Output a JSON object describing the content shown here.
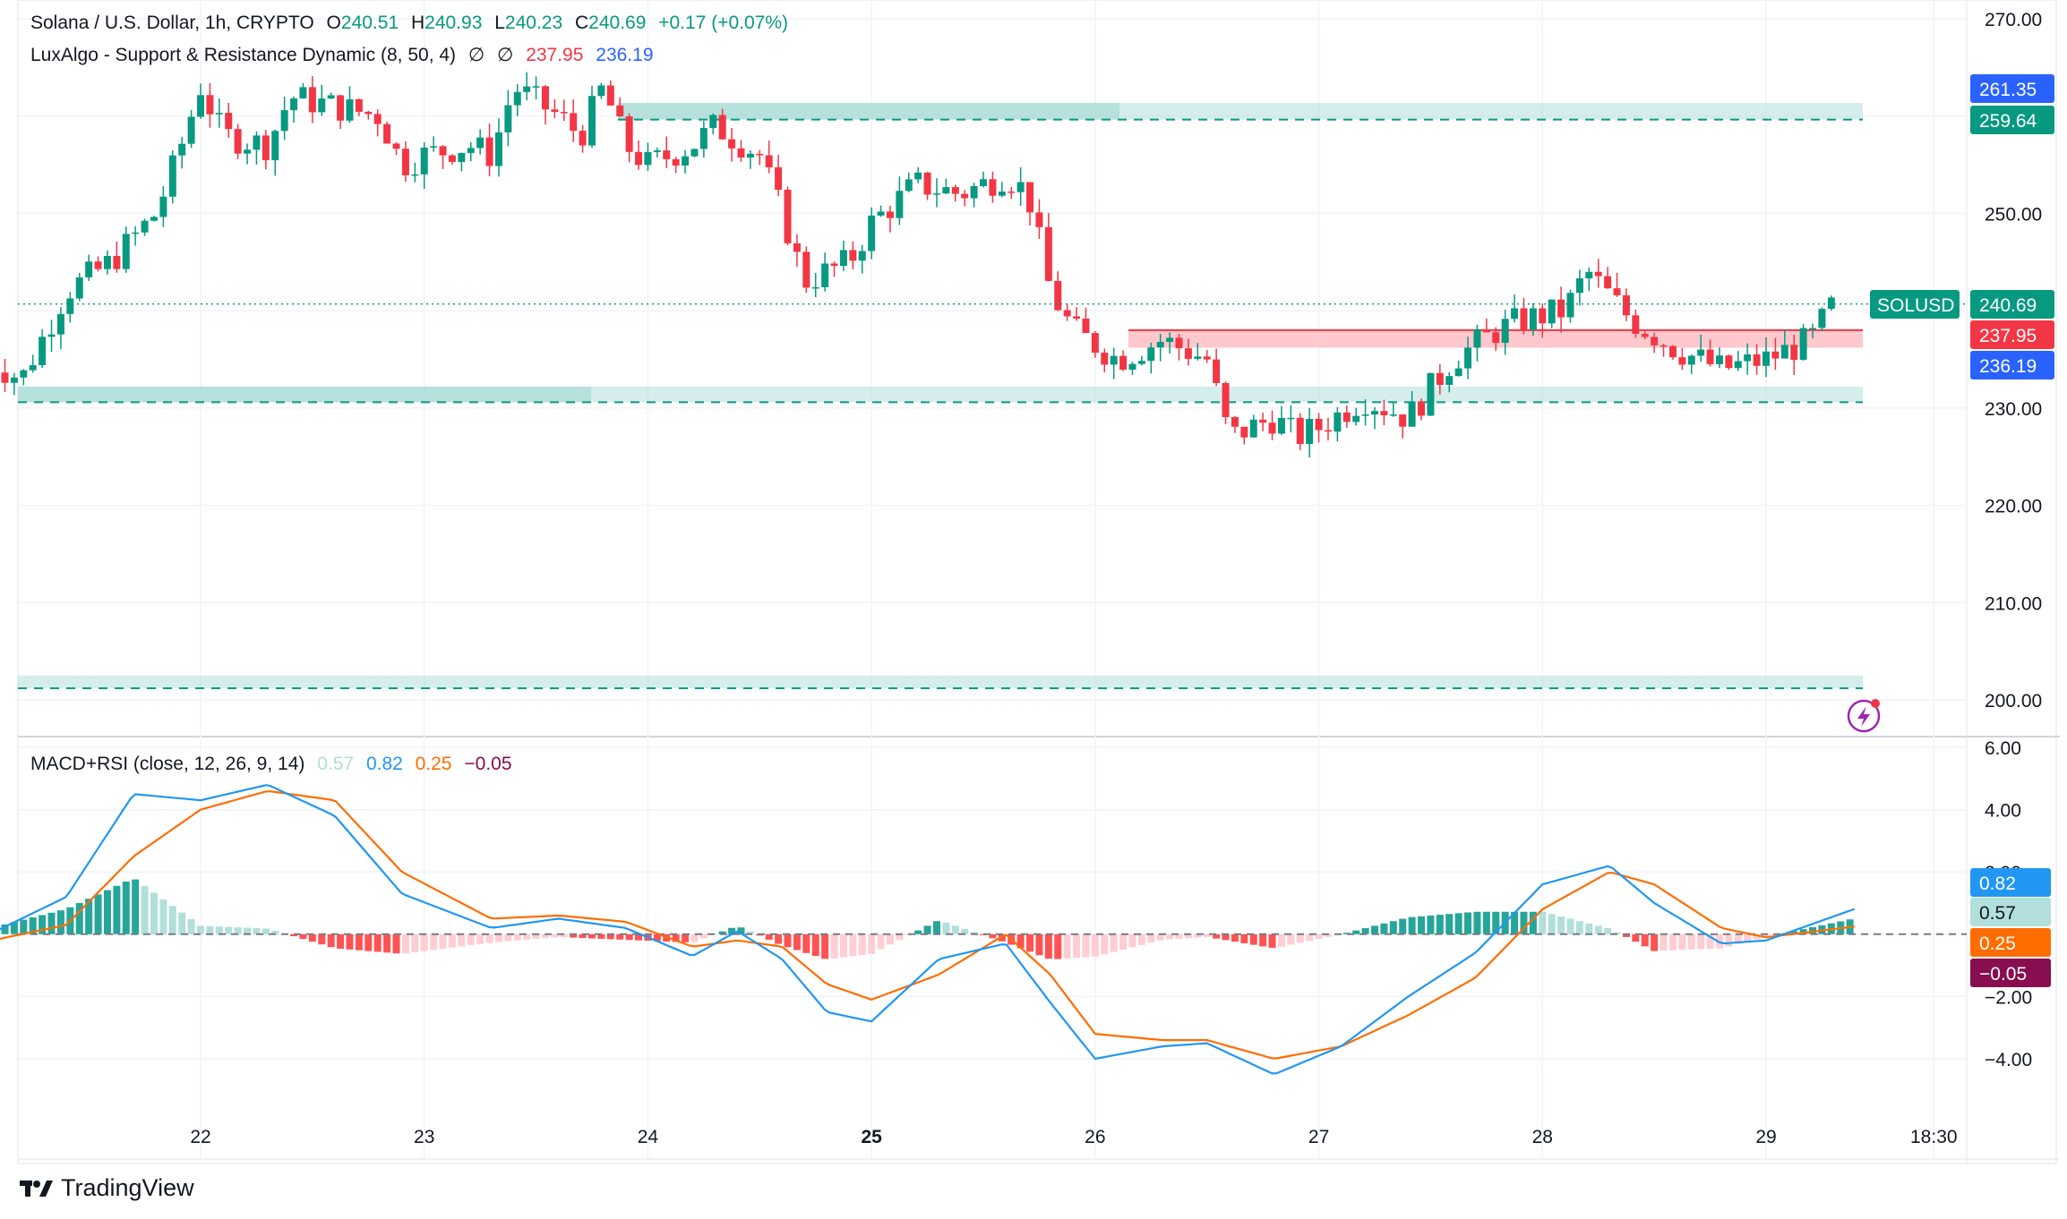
{
  "header": {
    "symbol_title": "Solana / U.S. Dollar, 1h, CRYPTO",
    "open_label": "O",
    "open_value": "240.51",
    "high_label": "H",
    "high_value": "240.93",
    "low_label": "L",
    "low_value": "240.23",
    "close_label": "C",
    "close_value": "240.69",
    "change": "+0.17 (+0.07%)"
  },
  "indicator_legend": {
    "name": "LuxAlgo - Support & Resistance Dynamic (8, 50, 4)",
    "empty_1": "∅",
    "empty_2": "∅",
    "value_resistance": "237.95",
    "value_support": "236.19"
  },
  "macd_legend": {
    "name": "MACD+RSI (close, 12, 26, 9, 14)",
    "hist": "0.57",
    "macd": "0.82",
    "signal": "0.25",
    "extra": "−0.05"
  },
  "price_axis_ticks": [
    "270.00",
    "250.00",
    "230.00",
    "220.00",
    "210.00",
    "200.00"
  ],
  "macd_axis_ticks": [
    "6.00",
    "4.00",
    "2.00",
    "−2.00",
    "−4.00"
  ],
  "time_axis_labels": [
    "22",
    "23",
    "24",
    "25",
    "26",
    "27",
    "28",
    "29",
    "18:30"
  ],
  "price_badges": [
    {
      "text": "261.35",
      "color": "#2962ff"
    },
    {
      "text": "259.64",
      "color": "#089981"
    },
    {
      "text": "240.69",
      "color": "#089981"
    },
    {
      "text": "237.95",
      "color": "#f23645"
    },
    {
      "text": "236.19",
      "color": "#2962ff"
    }
  ],
  "symbol_badge": "SOLUSD",
  "macd_badges": [
    {
      "text": "0.82",
      "color": "#2196f3"
    },
    {
      "text": "0.57",
      "color": "#b2dfdb"
    },
    {
      "text": "0.25",
      "color": "#ff6d00"
    },
    {
      "text": "−0.05",
      "color": "#880e4f"
    }
  ],
  "brand": "TradingView",
  "colors": {
    "up": "#089981",
    "down": "#f23645",
    "macd": "#2196f3",
    "signal": "#ff6d00",
    "zone": "#b2dfdb",
    "resist": "#ffc8cc"
  },
  "chart_data": [
    {
      "type": "candlestick",
      "title": "Solana / U.S. Dollar, 1h, CRYPTO",
      "x_labels": [
        "22",
        "23",
        "24",
        "25",
        "26",
        "27",
        "28",
        "29"
      ],
      "ylim": [
        196,
        272
      ],
      "close_path": [
        [
          21.0,
          235.5
        ],
        [
          21.2,
          233
        ],
        [
          21.4,
          242
        ],
        [
          21.6,
          245
        ],
        [
          21.8,
          250
        ],
        [
          21.9,
          256
        ],
        [
          22.0,
          263
        ],
        [
          22.1,
          258
        ],
        [
          22.3,
          257
        ],
        [
          22.4,
          262
        ],
        [
          22.6,
          261
        ],
        [
          22.8,
          260
        ],
        [
          22.9,
          255
        ],
        [
          23.0,
          256
        ],
        [
          23.2,
          257
        ],
        [
          23.3,
          256
        ],
        [
          23.4,
          263
        ],
        [
          23.6,
          260
        ],
        [
          23.7,
          258
        ],
        [
          23.8,
          263
        ],
        [
          23.9,
          257
        ],
        [
          24.0,
          255
        ],
        [
          24.2,
          257
        ],
        [
          24.3,
          259
        ],
        [
          24.5,
          256
        ],
        [
          24.6,
          250
        ],
        [
          24.7,
          243
        ],
        [
          24.9,
          245
        ],
        [
          25.0,
          249
        ],
        [
          25.2,
          253
        ],
        [
          25.4,
          252
        ],
        [
          25.6,
          254
        ],
        [
          25.7,
          252
        ],
        [
          25.8,
          242
        ],
        [
          25.9,
          238
        ],
        [
          26.1,
          235
        ],
        [
          26.3,
          237
        ],
        [
          26.5,
          235
        ],
        [
          26.6,
          227
        ],
        [
          26.8,
          229
        ],
        [
          26.9,
          227
        ],
        [
          27.0,
          228
        ],
        [
          27.2,
          231
        ],
        [
          27.4,
          229
        ],
        [
          27.6,
          235
        ],
        [
          27.8,
          238
        ],
        [
          27.9,
          239
        ],
        [
          28.1,
          240
        ],
        [
          28.2,
          244
        ],
        [
          28.4,
          239
        ],
        [
          28.6,
          236
        ],
        [
          28.8,
          234
        ],
        [
          29.0,
          235
        ],
        [
          29.2,
          237
        ],
        [
          29.3,
          240.7
        ]
      ],
      "current_price": 240.69
    },
    {
      "type": "line",
      "title": "MACD+RSI (close, 12, 26, 9, 14)",
      "ylim": [
        -5.5,
        6.2
      ],
      "macd": [
        [
          21.0,
          -0.2
        ],
        [
          21.4,
          1.2
        ],
        [
          21.7,
          4.5
        ],
        [
          22.0,
          4.3
        ],
        [
          22.3,
          4.8
        ],
        [
          22.6,
          3.8
        ],
        [
          22.9,
          1.3
        ],
        [
          23.3,
          0.2
        ],
        [
          23.6,
          0.5
        ],
        [
          23.9,
          0.2
        ],
        [
          24.2,
          -0.7
        ],
        [
          24.4,
          0.1
        ],
        [
          24.6,
          -0.8
        ],
        [
          24.8,
          -2.5
        ],
        [
          25.0,
          -2.8
        ],
        [
          25.3,
          -0.8
        ],
        [
          25.6,
          -0.3
        ],
        [
          25.8,
          -2.2
        ],
        [
          26.0,
          -4.0
        ],
        [
          26.3,
          -3.6
        ],
        [
          26.5,
          -3.5
        ],
        [
          26.8,
          -4.5
        ],
        [
          27.1,
          -3.6
        ],
        [
          27.4,
          -2.0
        ],
        [
          27.7,
          -0.6
        ],
        [
          28.0,
          1.6
        ],
        [
          28.3,
          2.2
        ],
        [
          28.5,
          1.0
        ],
        [
          28.8,
          -0.3
        ],
        [
          29.0,
          -0.2
        ],
        [
          29.4,
          0.82
        ]
      ],
      "signal": [
        [
          21.0,
          -0.3
        ],
        [
          21.4,
          0.3
        ],
        [
          21.7,
          2.5
        ],
        [
          22.0,
          4.0
        ],
        [
          22.3,
          4.6
        ],
        [
          22.6,
          4.3
        ],
        [
          22.9,
          2.0
        ],
        [
          23.3,
          0.5
        ],
        [
          23.6,
          0.6
        ],
        [
          23.9,
          0.4
        ],
        [
          24.2,
          -0.4
        ],
        [
          24.4,
          -0.2
        ],
        [
          24.6,
          -0.4
        ],
        [
          24.8,
          -1.6
        ],
        [
          25.0,
          -2.1
        ],
        [
          25.3,
          -1.3
        ],
        [
          25.6,
          0.0
        ],
        [
          25.8,
          -1.3
        ],
        [
          26.0,
          -3.2
        ],
        [
          26.3,
          -3.4
        ],
        [
          26.5,
          -3.4
        ],
        [
          26.8,
          -4.0
        ],
        [
          27.1,
          -3.6
        ],
        [
          27.4,
          -2.6
        ],
        [
          27.7,
          -1.4
        ],
        [
          28.0,
          0.8
        ],
        [
          28.3,
          2.0
        ],
        [
          28.5,
          1.6
        ],
        [
          28.8,
          0.2
        ],
        [
          29.0,
          -0.1
        ],
        [
          29.4,
          0.25
        ]
      ]
    }
  ]
}
